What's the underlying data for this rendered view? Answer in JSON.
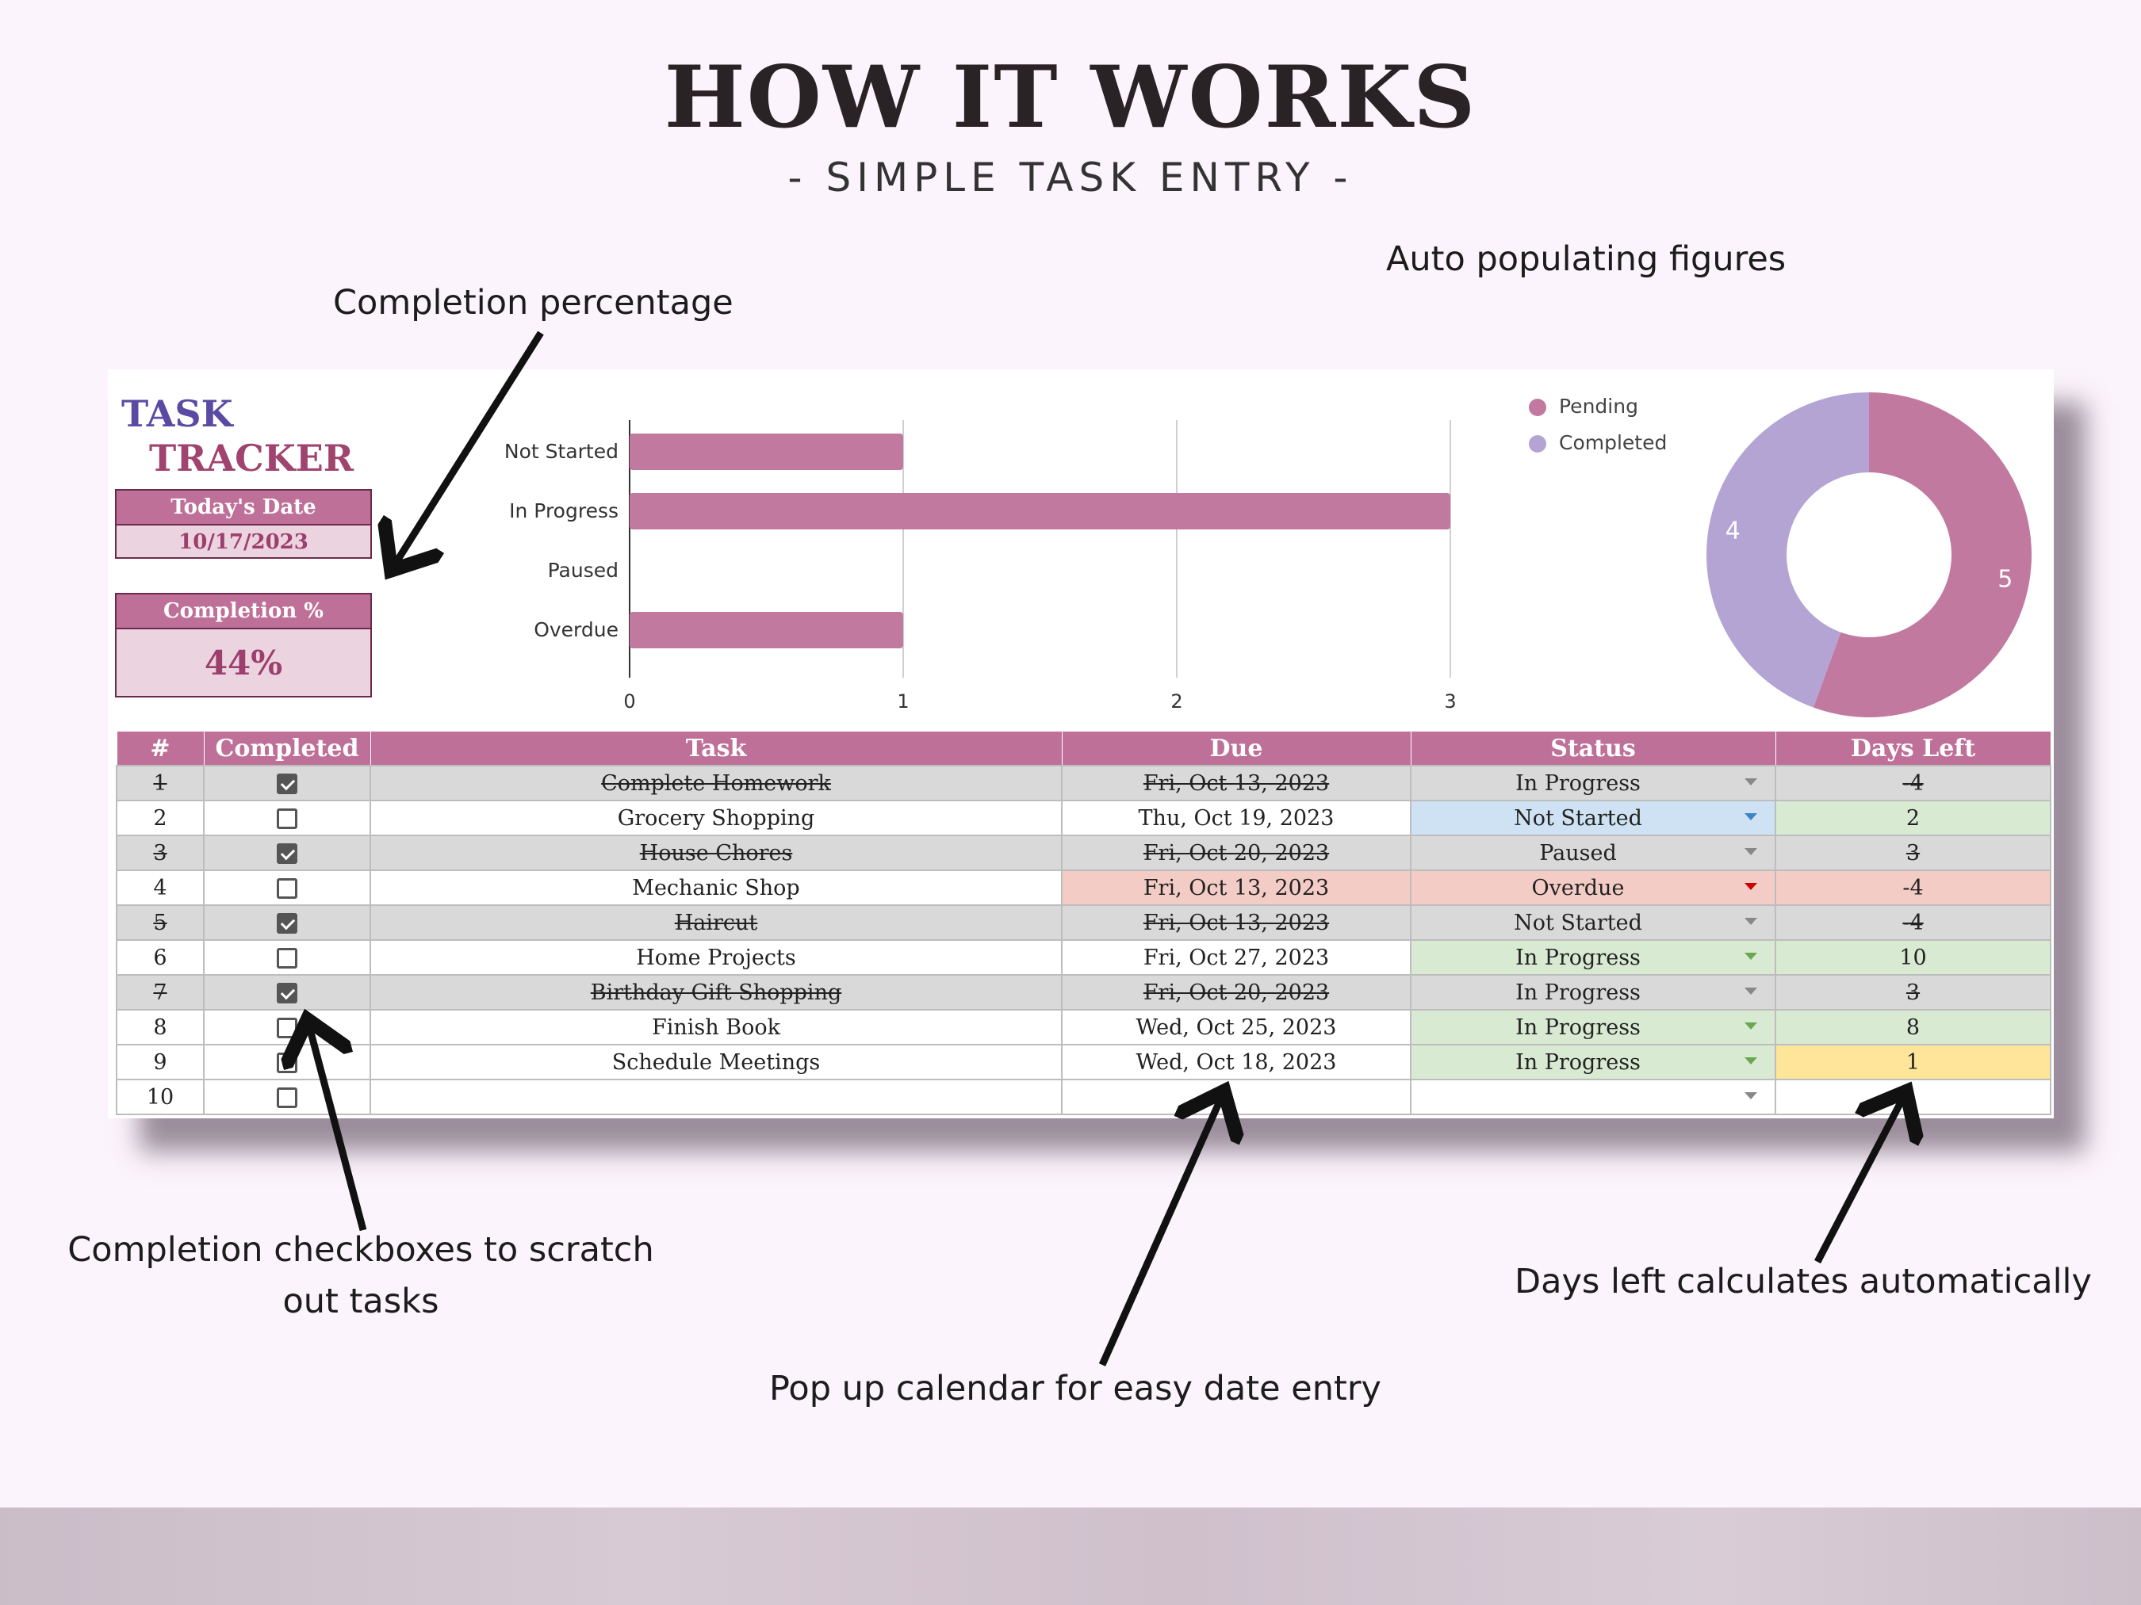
{
  "header": {
    "title": "HOW IT WORKS",
    "subtitle": "- SIMPLE TASK ENTRY  -"
  },
  "annotations": {
    "completion_percentage": "Completion percentage",
    "auto_populating": "Auto populating figures",
    "checkboxes": "Completion checkboxes to scratch out tasks",
    "days_left": "Days left calculates automatically",
    "calendar": "Pop up calendar for easy date entry"
  },
  "sheet": {
    "logo_line1": "TASK",
    "logo_line2": "TRACKER",
    "todays_date_label": "Today's Date",
    "todays_date_value": "10/17/2023",
    "completion_label": "Completion %",
    "completion_value": "44%",
    "completion_fraction": 0.44
  },
  "chart_data": [
    {
      "type": "bar",
      "orientation": "horizontal",
      "categories": [
        "Not Started",
        "In Progress",
        "Paused",
        "Overdue"
      ],
      "values": [
        1,
        3,
        0,
        1
      ],
      "xlim": [
        0,
        3
      ],
      "xticks": [
        "0",
        "1",
        "2",
        "3"
      ],
      "color": "#c2799f",
      "grid": true
    },
    {
      "type": "pie",
      "donut": true,
      "labels": [
        "Pending",
        "Completed"
      ],
      "values": [
        5,
        4
      ],
      "value_labels": [
        "5",
        "4"
      ],
      "colors": [
        "#c2799f",
        "#b4a4d4"
      ],
      "legend": "top-left"
    }
  ],
  "table": {
    "columns": [
      "#",
      "Completed",
      "Task",
      "Due",
      "Status",
      "Days Left"
    ],
    "rows": [
      {
        "num": "1",
        "done": true,
        "task": "Complete Homework",
        "due": "Fri, Oct 13, 2023",
        "status": "In Progress",
        "days": "-4"
      },
      {
        "num": "2",
        "done": false,
        "task": "Grocery Shopping",
        "due": "Thu, Oct 19, 2023",
        "status": "Not Started",
        "days": "2"
      },
      {
        "num": "3",
        "done": true,
        "task": "House Chores",
        "due": "Fri, Oct 20, 2023",
        "status": "Paused",
        "days": "3"
      },
      {
        "num": "4",
        "done": false,
        "task": "Mechanic Shop",
        "due": "Fri, Oct 13, 2023",
        "status": "Overdue",
        "days": "-4"
      },
      {
        "num": "5",
        "done": true,
        "task": "Haircut",
        "due": "Fri, Oct 13, 2023",
        "status": "Not Started",
        "days": "-4"
      },
      {
        "num": "6",
        "done": false,
        "task": "Home Projects",
        "due": "Fri, Oct 27, 2023",
        "status": "In Progress",
        "days": "10"
      },
      {
        "num": "7",
        "done": true,
        "task": "Birthday Gift Shopping",
        "due": "Fri, Oct 20, 2023",
        "status": "In Progress",
        "days": "3"
      },
      {
        "num": "8",
        "done": false,
        "task": "Finish Book",
        "due": "Wed, Oct 25, 2023",
        "status": "In Progress",
        "days": "8"
      },
      {
        "num": "9",
        "done": false,
        "task": "Schedule Meetings",
        "due": "Wed, Oct 18, 2023",
        "status": "In Progress",
        "days": "1"
      },
      {
        "num": "10",
        "done": false,
        "task": "",
        "due": "",
        "status": "",
        "days": ""
      }
    ]
  },
  "colors": {
    "accent_pink": "#be7098",
    "lavender": "#b4a4d4",
    "not_started_blue": "#cfe2f3",
    "in_progress_green": "#d9ead3",
    "overdue_red": "#f4ccc6",
    "soon_yellow": "#ffe599",
    "dropdown_blue": "#3d85c6",
    "dropdown_green": "#6aa84f",
    "dropdown_red": "#cc0000"
  }
}
